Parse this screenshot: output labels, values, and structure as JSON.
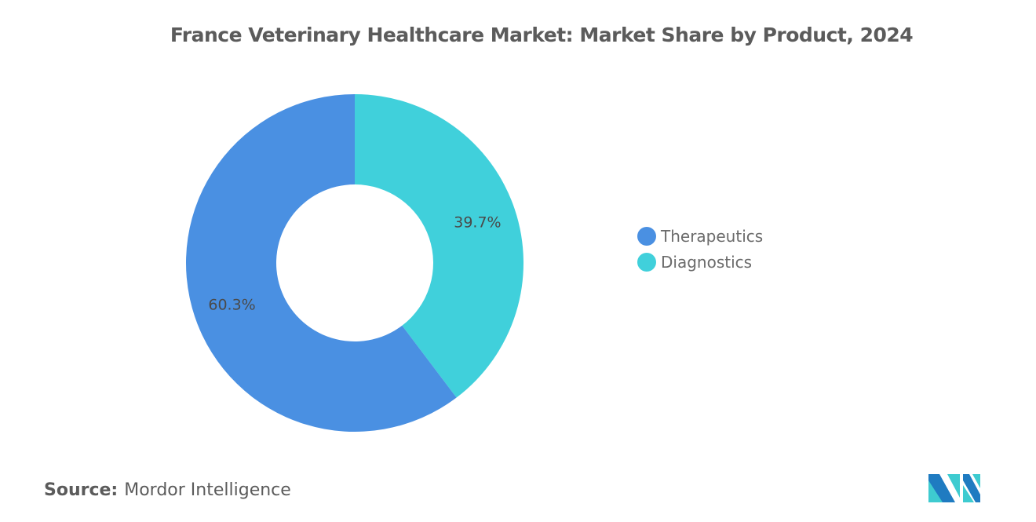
{
  "chart_data": {
    "type": "pie",
    "title": "France Veterinary Healthcare Market: Market Share by Product, 2024",
    "donut": true,
    "slices": [
      {
        "label": "Diagnostics",
        "value": 39.7,
        "display": "39.7%",
        "color": "#40D0DB"
      },
      {
        "label": "Therapeutics",
        "value": 60.3,
        "display": "60.3%",
        "color": "#4A90E2"
      }
    ],
    "legend": {
      "placement": "right",
      "entries": [
        "Therapeutics",
        "Diagnostics"
      ]
    }
  },
  "legend_items": [
    {
      "label": "Therapeutics",
      "color": "#4A90E2"
    },
    {
      "label": "Diagnostics",
      "color": "#40D0DB"
    }
  ],
  "source": {
    "label": "Source:",
    "value": "Mordor Intelligence"
  },
  "logo": {
    "text": "Mordor Intelligence",
    "colors": [
      "#1F7BC1",
      "#3ECBD0"
    ]
  }
}
